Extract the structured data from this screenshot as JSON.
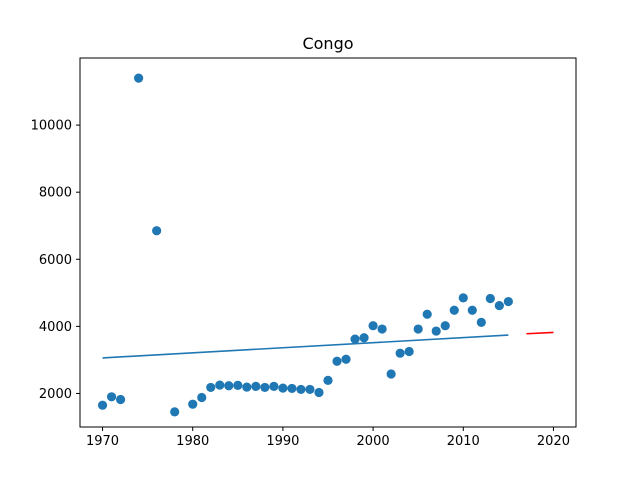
{
  "chart_data": {
    "type": "scatter",
    "title": "Congo",
    "xlabel": "",
    "ylabel": "",
    "xlim": [
      1967.5,
      2022.5
    ],
    "ylim": [
      1000,
      12000
    ],
    "xticks": [
      1970,
      1980,
      1990,
      2000,
      2010,
      2020
    ],
    "yticks": [
      2000,
      4000,
      6000,
      8000,
      10000
    ],
    "grid": false,
    "colors": {
      "points": "#1f77b4",
      "fit": "#1f77b4",
      "forecast": "#ff0000"
    },
    "series": [
      {
        "kind": "scatter",
        "points": [
          [
            1970,
            1650
          ],
          [
            1971,
            1900
          ],
          [
            1972,
            1820
          ],
          [
            1974,
            11400
          ],
          [
            1976,
            6850
          ],
          [
            1978,
            1450
          ],
          [
            1980,
            1680
          ],
          [
            1981,
            1880
          ],
          [
            1982,
            2180
          ],
          [
            1983,
            2250
          ],
          [
            1984,
            2230
          ],
          [
            1985,
            2240
          ],
          [
            1986,
            2190
          ],
          [
            1987,
            2210
          ],
          [
            1988,
            2180
          ],
          [
            1989,
            2210
          ],
          [
            1990,
            2160
          ],
          [
            1991,
            2150
          ],
          [
            1992,
            2120
          ],
          [
            1993,
            2120
          ],
          [
            1994,
            2030
          ],
          [
            1995,
            2390
          ],
          [
            1996,
            2960
          ],
          [
            1997,
            3020
          ],
          [
            1998,
            3620
          ],
          [
            1999,
            3660
          ],
          [
            2000,
            4020
          ],
          [
            2001,
            3920
          ],
          [
            2002,
            2580
          ],
          [
            2003,
            3200
          ],
          [
            2004,
            3250
          ],
          [
            2005,
            3920
          ],
          [
            2006,
            4360
          ],
          [
            2007,
            3860
          ],
          [
            2008,
            4020
          ],
          [
            2009,
            4480
          ],
          [
            2010,
            4850
          ],
          [
            2011,
            4480
          ],
          [
            2012,
            4120
          ],
          [
            2013,
            4830
          ],
          [
            2014,
            4620
          ],
          [
            2015,
            4740
          ]
        ]
      },
      {
        "kind": "line",
        "points": [
          [
            1970,
            3060
          ],
          [
            2015,
            3740
          ]
        ]
      },
      {
        "kind": "line",
        "points": [
          [
            2017,
            3780
          ],
          [
            2020,
            3820
          ]
        ]
      }
    ]
  }
}
